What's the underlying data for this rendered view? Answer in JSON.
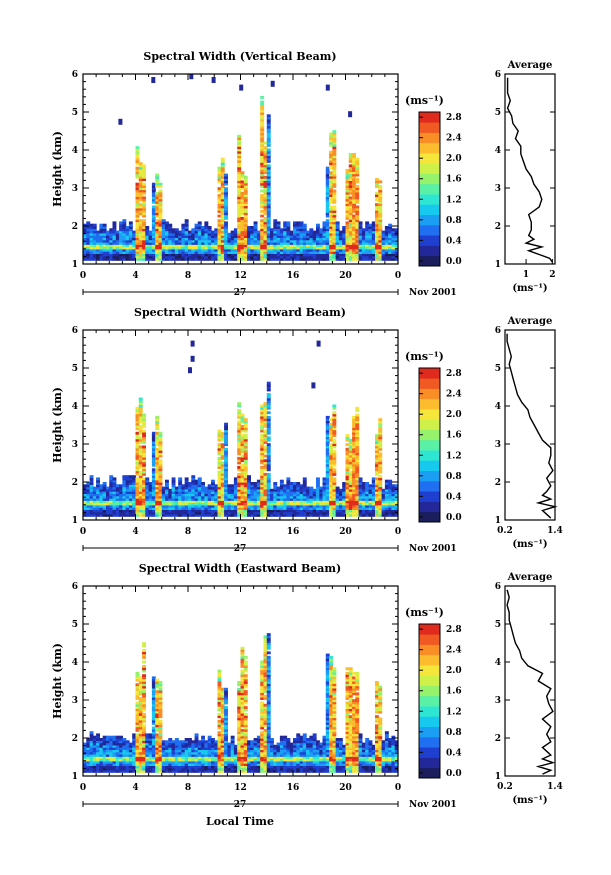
{
  "chart_data": [
    {
      "type": "heatmap",
      "title": "Spectral Width (Vertical Beam)",
      "ylabel": "Height (km)",
      "xlabel": "",
      "x_ticks": [
        "0",
        "4",
        "8",
        "12",
        "16",
        "20",
        "0"
      ],
      "y_ticks": [
        "1",
        "2",
        "3",
        "4",
        "5",
        "6"
      ],
      "xlim": [
        0,
        24
      ],
      "ylim": [
        1,
        6
      ],
      "day_label": "27",
      "month_label": "Nov 2001",
      "colorbar": {
        "unit": "(ms⁻¹)",
        "ticks": [
          "0.0",
          "0.4",
          "0.8",
          "1.2",
          "1.6",
          "2.0",
          "2.4",
          "2.8"
        ],
        "range": [
          0,
          3.0
        ]
      },
      "profile": {
        "title": "Average",
        "xlabel": "(ms⁻¹)",
        "x_ticks": [
          "1",
          "2"
        ],
        "xlim": [
          0.2,
          2.1
        ],
        "y": [
          1.05,
          1.15,
          1.25,
          1.35,
          1.45,
          1.55,
          1.65,
          1.75,
          1.9,
          2.1,
          2.3,
          2.5,
          2.7,
          2.9,
          3.1,
          3.3,
          3.5,
          3.7,
          3.9,
          4.1,
          4.3,
          4.5,
          4.7,
          4.9,
          5.1,
          5.3,
          5.5,
          5.7,
          5.9
        ],
        "x": [
          2.0,
          1.9,
          1.5,
          1.1,
          1.6,
          1.0,
          1.3,
          1.1,
          1.2,
          1.2,
          1.1,
          1.5,
          1.6,
          1.5,
          1.3,
          1.2,
          1.0,
          0.9,
          0.8,
          0.8,
          0.6,
          0.7,
          0.5,
          0.45,
          0.3,
          0.4,
          0.3,
          0.3,
          0.3
        ]
      }
    },
    {
      "type": "heatmap",
      "title": "Spectral Width (Northward Beam)",
      "ylabel": "Height (km)",
      "xlabel": "",
      "x_ticks": [
        "0",
        "4",
        "8",
        "12",
        "16",
        "20",
        "0"
      ],
      "y_ticks": [
        "1",
        "2",
        "3",
        "4",
        "5",
        "6"
      ],
      "xlim": [
        0,
        24
      ],
      "ylim": [
        1,
        6
      ],
      "day_label": "27",
      "month_label": "Nov 2001",
      "colorbar": {
        "unit": "(ms⁻¹)",
        "ticks": [
          "0.0",
          "0.4",
          "0.8",
          "1.2",
          "1.6",
          "2.0",
          "2.4",
          "2.8"
        ],
        "range": [
          0,
          3.0
        ]
      },
      "profile": {
        "title": "Average",
        "xlabel": "(ms⁻¹)",
        "x_ticks": [
          "0.2",
          "1.4"
        ],
        "xlim": [
          0.2,
          1.4
        ],
        "y": [
          1.05,
          1.15,
          1.25,
          1.35,
          1.45,
          1.55,
          1.65,
          1.75,
          1.9,
          2.1,
          2.3,
          2.5,
          2.7,
          2.9,
          3.1,
          3.3,
          3.5,
          3.7,
          3.9,
          4.1,
          4.3,
          4.5,
          4.7,
          4.9,
          5.1,
          5.3,
          5.5,
          5.7,
          5.9
        ],
        "x": [
          1.3,
          1.2,
          1.1,
          1.4,
          1.0,
          1.3,
          1.1,
          1.2,
          1.3,
          1.2,
          1.35,
          1.25,
          1.3,
          1.3,
          1.1,
          1.0,
          0.9,
          0.8,
          0.75,
          0.6,
          0.5,
          0.45,
          0.4,
          0.35,
          0.3,
          0.35,
          0.3,
          0.25,
          0.25
        ]
      }
    },
    {
      "type": "heatmap",
      "title": "Spectral Width (Eastward Beam)",
      "ylabel": "Height (km)",
      "xlabel": "Local Time",
      "x_ticks": [
        "0",
        "4",
        "8",
        "12",
        "16",
        "20",
        "0"
      ],
      "y_ticks": [
        "1",
        "2",
        "3",
        "4",
        "5",
        "6"
      ],
      "xlim": [
        0,
        24
      ],
      "ylim": [
        1,
        6
      ],
      "day_label": "27",
      "month_label": "Nov 2001",
      "colorbar": {
        "unit": "(ms⁻¹)",
        "ticks": [
          "0.0",
          "0.4",
          "0.8",
          "1.2",
          "1.6",
          "2.0",
          "2.4",
          "2.8"
        ],
        "range": [
          0,
          3.0
        ]
      },
      "profile": {
        "title": "Average",
        "xlabel": "(ms⁻¹)",
        "x_ticks": [
          "0.2",
          "1.4"
        ],
        "xlim": [
          0.2,
          1.4
        ],
        "y": [
          1.05,
          1.15,
          1.25,
          1.35,
          1.45,
          1.55,
          1.65,
          1.75,
          1.9,
          2.1,
          2.3,
          2.5,
          2.7,
          2.9,
          3.1,
          3.3,
          3.5,
          3.7,
          3.9,
          4.1,
          4.3,
          4.5,
          4.7,
          4.9,
          5.1,
          5.3,
          5.5,
          5.7,
          5.9
        ],
        "x": [
          1.1,
          1.3,
          1.0,
          1.35,
          1.1,
          1.3,
          1.2,
          1.1,
          1.3,
          1.2,
          1.3,
          1.1,
          1.35,
          1.25,
          1.2,
          1.3,
          1.0,
          1.1,
          0.75,
          0.6,
          0.55,
          0.45,
          0.4,
          0.35,
          0.3,
          0.3,
          0.25,
          0.3,
          0.25
        ]
      }
    }
  ]
}
